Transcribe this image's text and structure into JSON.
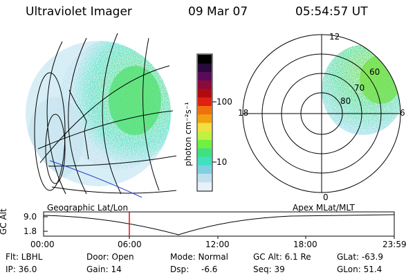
{
  "header": {
    "title": "Ultraviolet Imager",
    "date": "09 Mar 07",
    "time": "05:54:57 UT"
  },
  "colorbar": {
    "label": "photon cm⁻²s⁻¹",
    "ticks": [
      "100",
      "10"
    ],
    "colors": [
      "#000000",
      "#2a0a3a",
      "#5a0a5a",
      "#8a0a3a",
      "#b00a10",
      "#e02010",
      "#f07010",
      "#f0a010",
      "#f0e040",
      "#c0f040",
      "#70f040",
      "#40e080",
      "#40e0c0",
      "#80d0e0",
      "#c0e0f0",
      "#e8f0f8"
    ]
  },
  "polar": {
    "labels": {
      "top": "12",
      "left": "18",
      "right": "6",
      "bottom": "0"
    },
    "rings": [
      "80",
      "70",
      "60"
    ]
  },
  "timeline": {
    "left_title": "Geographic Lat/Lon",
    "right_title": "Apex  MLat/MLT",
    "axis_label": "GC Alt",
    "y_ticks": [
      "9.0",
      "1.8"
    ],
    "x_ticks": [
      "00:00",
      "06:00",
      "12:00",
      "18:00",
      "23:59"
    ]
  },
  "status": {
    "filter": "Flt: LBHL",
    "ip": "IP: 36.0",
    "door": "Door: Open",
    "gain": "Gain: 14",
    "mode": "Mode: Normal",
    "dsp_label": "Dsp:",
    "dsp_value": "-6.6",
    "gc_alt": "GC Alt: 6.1 Re",
    "seq": "Seq: 39",
    "glat": "GLat: -63.9",
    "glon": "GLon:  51.4"
  }
}
